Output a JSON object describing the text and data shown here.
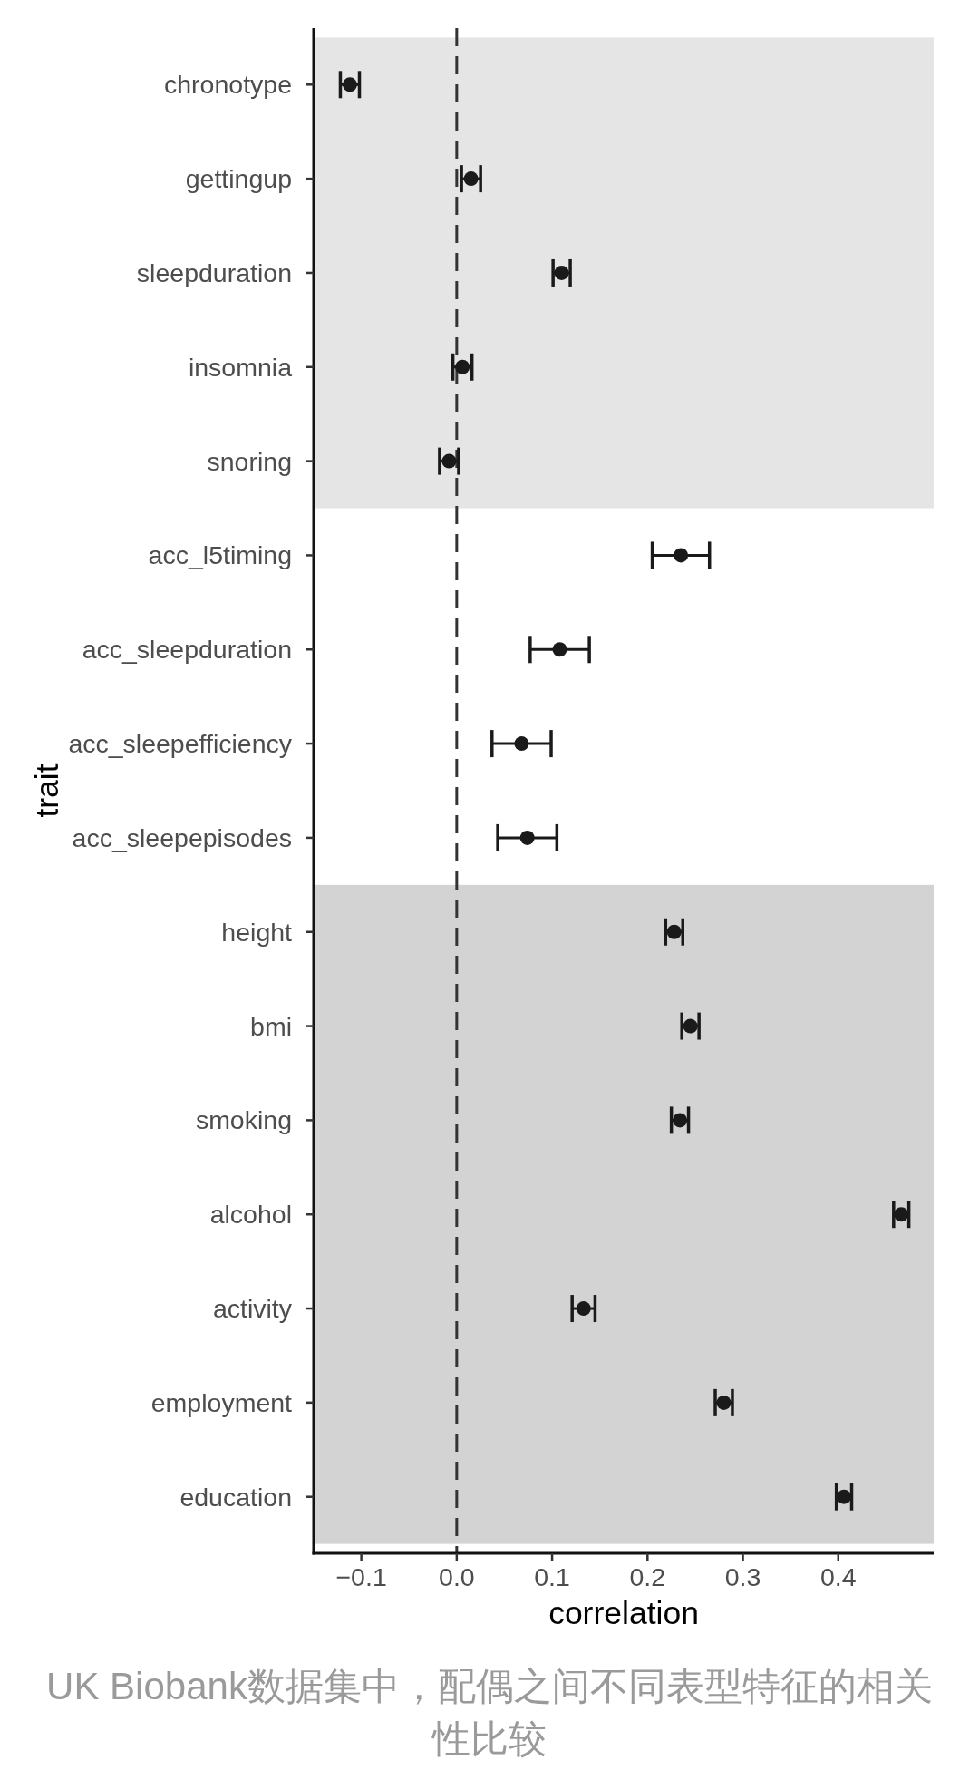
{
  "chart_data": {
    "type": "scatter",
    "orientation": "horizontal",
    "categories": [
      "chronotype",
      "gettingup",
      "sleepduration",
      "insomnia",
      "snoring",
      "acc_l5timing",
      "acc_sleepduration",
      "acc_sleepefficiency",
      "acc_sleepepisodes",
      "height",
      "bmi",
      "smoking",
      "alcohol",
      "activity",
      "employment",
      "education"
    ],
    "values": [
      -0.112,
      0.015,
      0.11,
      0.006,
      -0.008,
      0.235,
      0.108,
      0.068,
      0.074,
      0.228,
      0.245,
      0.234,
      0.466,
      0.133,
      0.28,
      0.406
    ],
    "errors": [
      0.01,
      0.01,
      0.009,
      0.01,
      0.01,
      0.03,
      0.031,
      0.031,
      0.031,
      0.009,
      0.009,
      0.009,
      0.008,
      0.012,
      0.009,
      0.008
    ],
    "color": "#1a1a1a",
    "marker": "circle",
    "xlim": [
      -0.15,
      0.5
    ],
    "xticks": [
      {
        "value": -0.1,
        "label": "−0.1"
      },
      {
        "value": 0,
        "label": "0.0"
      },
      0.1,
      0.2,
      0.3,
      0.4
    ],
    "xlabel": "correlation",
    "ylabel": "trait",
    "bands": [
      {
        "axis": "y",
        "from": "chronotype",
        "to": "snoring",
        "color": "#e5e5e5"
      },
      {
        "axis": "y",
        "from": "height",
        "to": "education",
        "color": "#d3d3d3"
      }
    ],
    "ref_lines": [
      {
        "axis": "x",
        "value": 0,
        "color": "#333333",
        "line_style": "dashed"
      }
    ],
    "annotations": [
      "UK Biobank数据集中，配偶之间不同表型特征的相关性比较"
    ]
  }
}
